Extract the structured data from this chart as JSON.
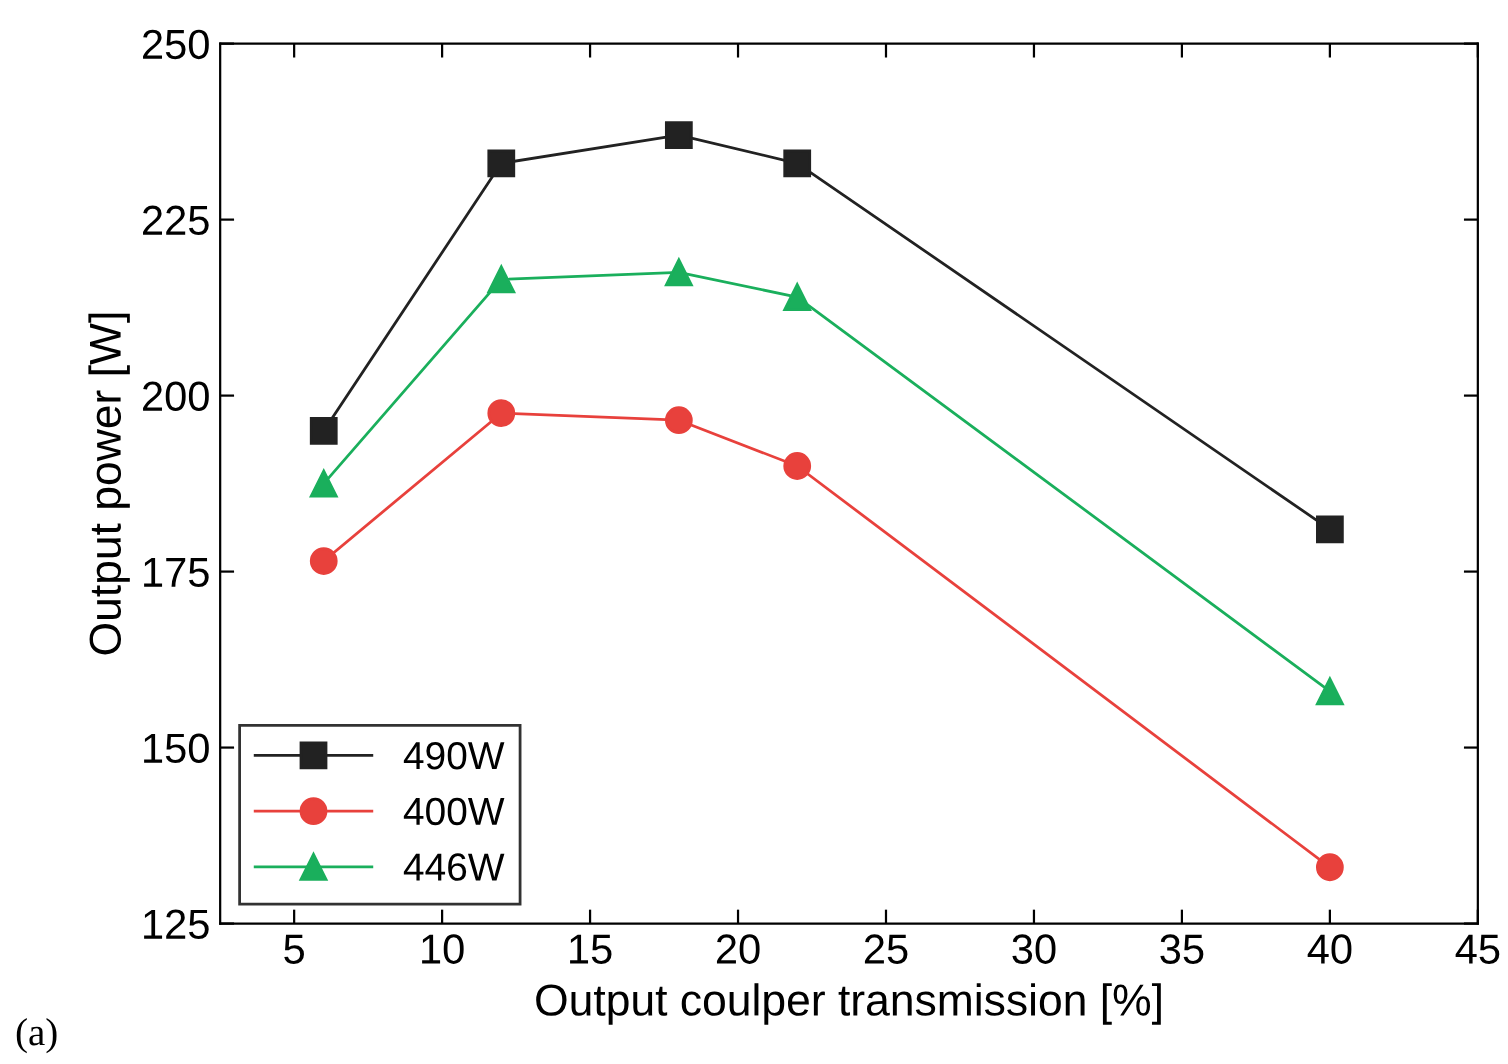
{
  "chart_data": {
    "type": "line",
    "xlabel": "Output coulper transmission [%]",
    "ylabel": "Output power [W]",
    "x": [
      6,
      12,
      18,
      22,
      40
    ],
    "series": [
      {
        "name": "490W",
        "color": "#222222",
        "marker": "square",
        "values": [
          195,
          233,
          237,
          233,
          181
        ]
      },
      {
        "name": "400W",
        "color": "#e8413c",
        "marker": "circle",
        "values": [
          176.5,
          197.5,
          196.5,
          190,
          133
        ]
      },
      {
        "name": "446W",
        "color": "#1aaf5c",
        "marker": "triangle",
        "values": [
          187.5,
          216.5,
          217.5,
          214,
          158
        ]
      }
    ],
    "xlim": [
      2.5,
      45
    ],
    "xticks": [
      5,
      10,
      15,
      20,
      25,
      30,
      35,
      40,
      45
    ],
    "ylim": [
      125,
      250
    ],
    "yticks": [
      125,
      150,
      175,
      200,
      225,
      250
    ],
    "grid": false,
    "legend": "bottom left",
    "line_style": "solid",
    "annotations": [
      "(a)"
    ]
  }
}
